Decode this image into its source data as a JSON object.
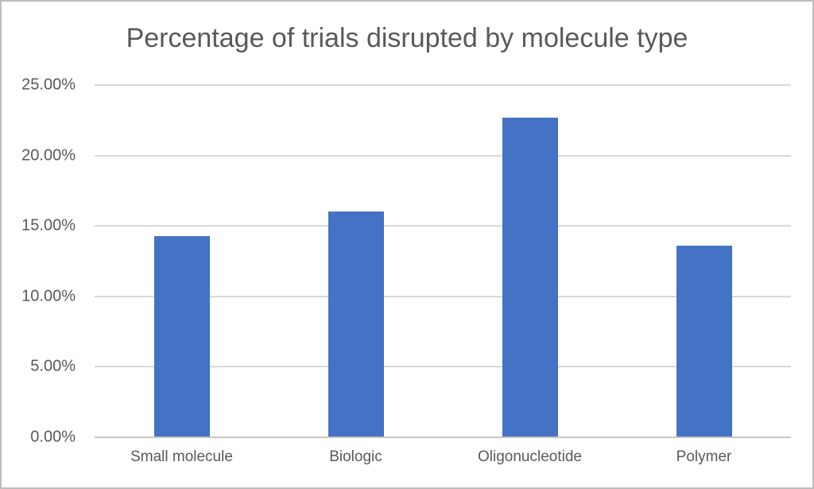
{
  "chart_data": {
    "type": "bar",
    "title": "Percentage of trials disrupted by molecule type",
    "categories": [
      "Small molecule",
      "Biologic",
      "Oligonucleotide",
      "Polymer"
    ],
    "values": [
      14.3,
      16.0,
      22.7,
      13.6
    ],
    "xlabel": "",
    "ylabel": "",
    "ylim": [
      0,
      25
    ],
    "ytick_step": 5,
    "ytick_labels": [
      "0.00%",
      "5.00%",
      "10.00%",
      "15.00%",
      "20.00%",
      "25.00%"
    ],
    "grid": true,
    "legend": false,
    "colors": {
      "bar": "#4472C4",
      "gridline": "#D9D9D9",
      "axis_line": "#C6C6C6",
      "text": "#595959",
      "frame_border": "#BDBDBD",
      "background": "#FFFFFF"
    }
  }
}
